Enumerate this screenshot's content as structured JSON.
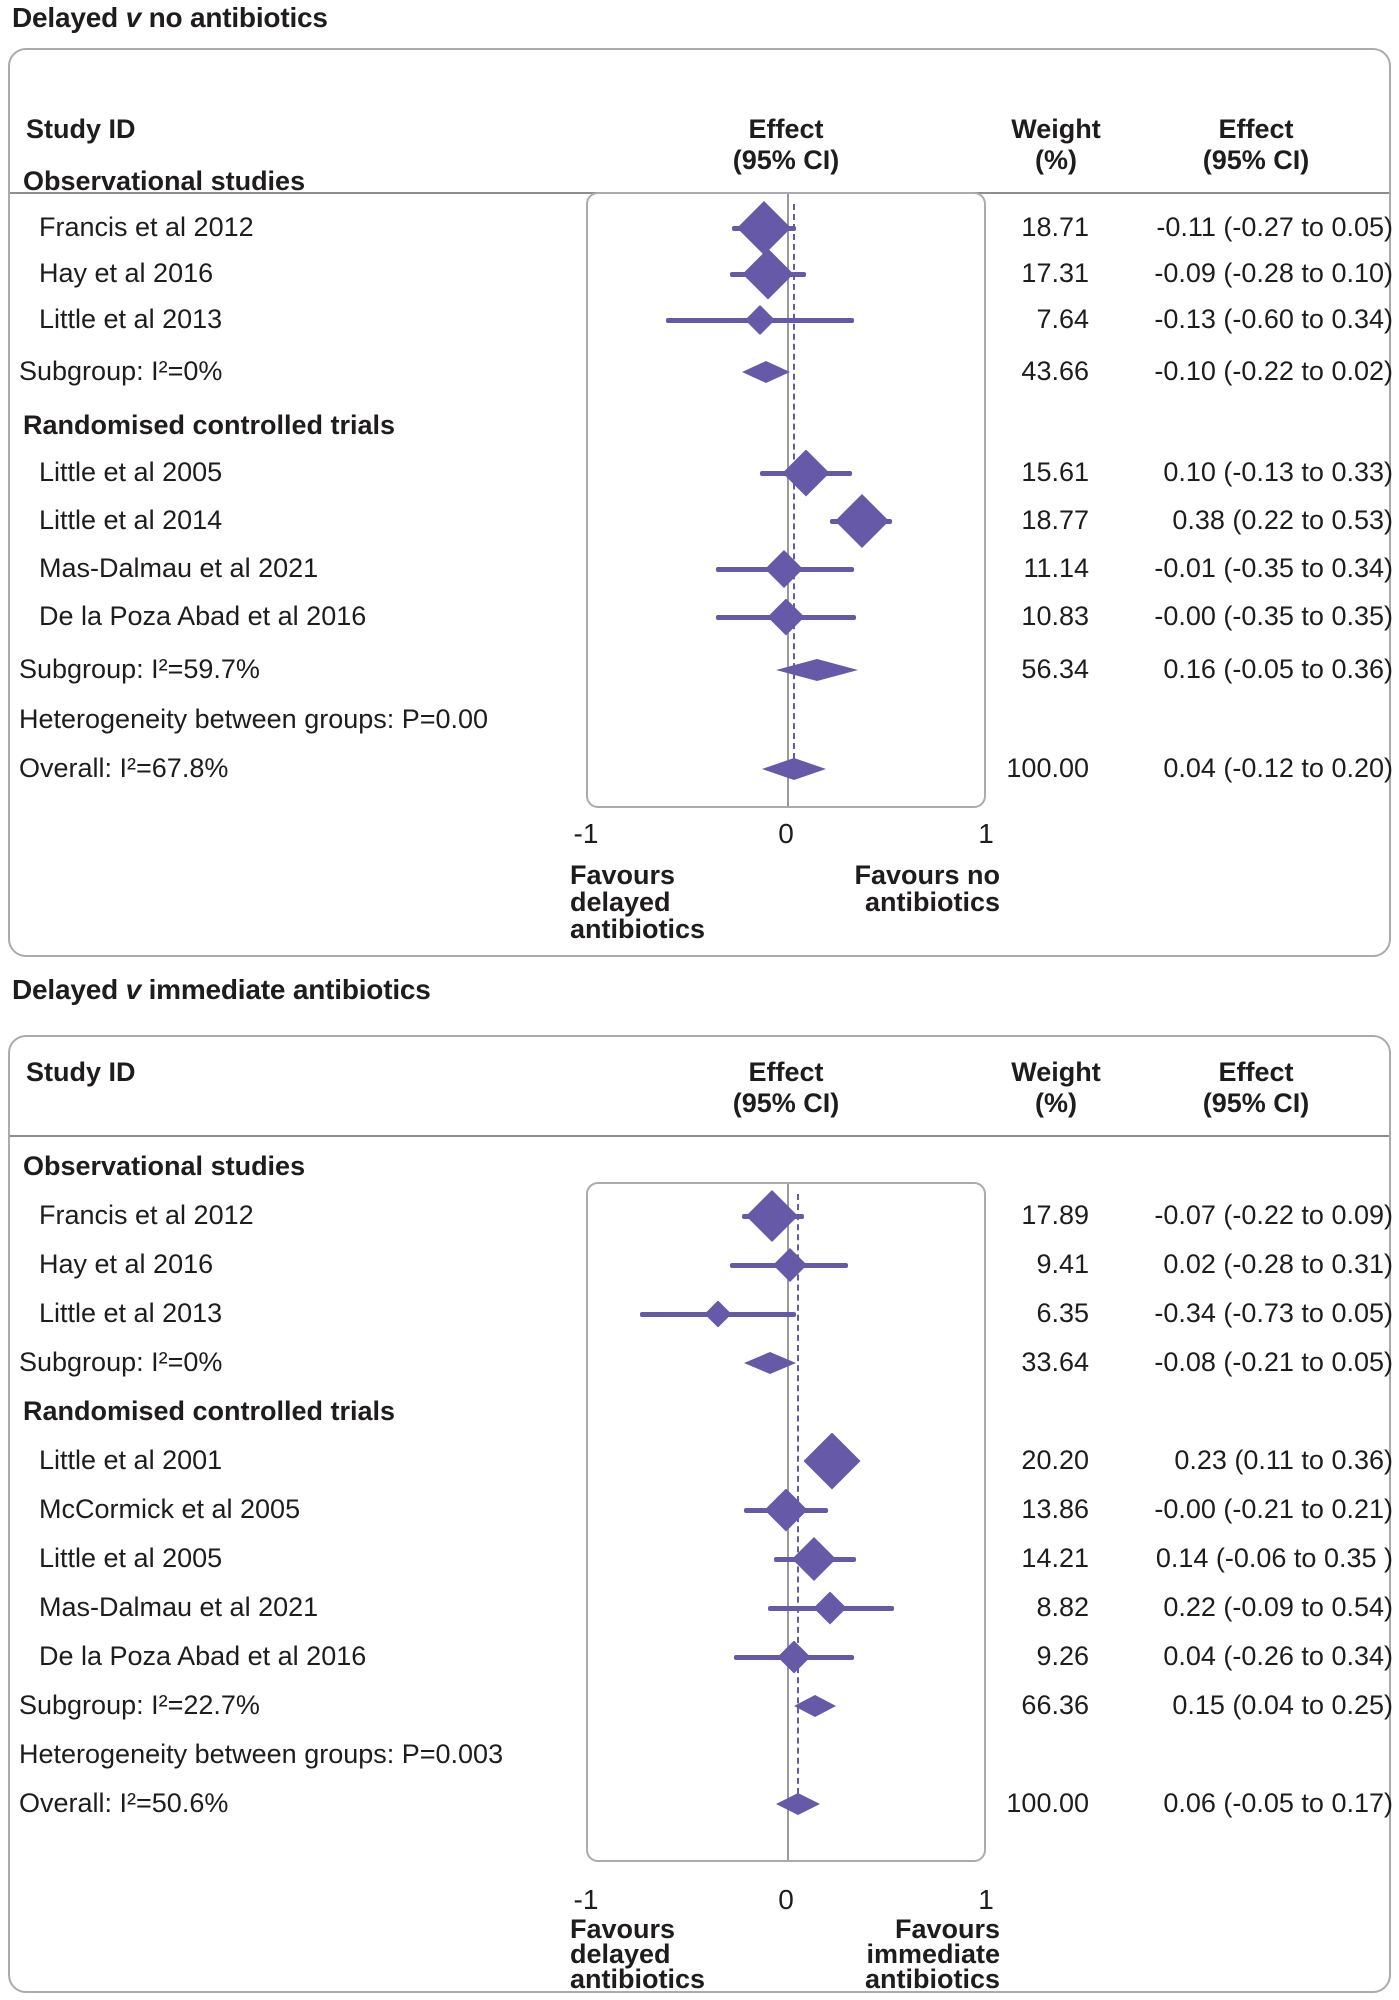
{
  "accent_color": "#6659a8",
  "line_gray": "#9a999d",
  "ui": {
    "panels": [
      {
        "title_pre": "Delayed",
        "title_v": "v",
        "title_post": "no antibiotics",
        "col_study": "Study ID",
        "col_effect_l1": "Effect",
        "col_effect_l2": "(95% CI)",
        "col_weight_l1": "Weight",
        "col_weight_l2": "(%)",
        "col_effect2_l1": "Effect",
        "col_effect2_l2": "(95% CI)",
        "tick_neg": "-1",
        "tick_zero": "0",
        "tick_pos": "1"
      },
      {
        "title_pre": "Delayed",
        "title_v": "v",
        "title_post": "immediate antibiotics",
        "col_study": "Study ID",
        "col_effect_l1": "Effect",
        "col_effect_l2": "(95% CI)",
        "col_weight_l1": "Weight",
        "col_weight_l2": "(%)",
        "col_effect2_l1": "Effect",
        "col_effect2_l2": "(95% CI)",
        "tick_neg": "-1",
        "tick_zero": "0",
        "tick_pos": "1"
      }
    ]
  },
  "chart_data": [
    {
      "type": "forest",
      "title": "Delayed v no antibiotics",
      "x_axis": {
        "range": [
          -1,
          1
        ],
        "ticks": [
          -1,
          0,
          1
        ]
      },
      "overall_effect": 0.04,
      "favours_left": [
        "Favours",
        "delayed",
        "antibiotics"
      ],
      "favours_right": [
        "Favours no",
        "antibiotics"
      ],
      "rows": [
        {
          "kind": "group",
          "label": "Observational studies"
        },
        {
          "kind": "study",
          "label": "Francis et al 2012",
          "weight": 18.71,
          "effect": -0.11,
          "lo": -0.27,
          "hi": 0.05,
          "weight_str": "18.71",
          "effect_str": "-0.11 (-0.27 to 0.05)"
        },
        {
          "kind": "study",
          "label": "Hay et al 2016",
          "weight": 17.31,
          "effect": -0.09,
          "lo": -0.28,
          "hi": 0.1,
          "weight_str": "17.31",
          "effect_str": "-0.09 (-0.28 to 0.10)"
        },
        {
          "kind": "study",
          "label": "Little et al 2013",
          "weight": 7.64,
          "effect": -0.13,
          "lo": -0.6,
          "hi": 0.34,
          "weight_str": "7.64",
          "effect_str": "-0.13 (-0.60 to 0.34)"
        },
        {
          "kind": "subgroup",
          "label": "Subgroup: I²=0%",
          "effect": -0.1,
          "lo": -0.22,
          "hi": 0.02,
          "weight_str": "43.66",
          "effect_str": "-0.10 (-0.22 to 0.02)"
        },
        {
          "kind": "group",
          "label": "Randomised controlled trials"
        },
        {
          "kind": "study",
          "label": "Little et al 2005",
          "weight": 15.61,
          "effect": 0.1,
          "lo": -0.13,
          "hi": 0.33,
          "weight_str": "15.61",
          "effect_str": "0.10 (-0.13 to 0.33)"
        },
        {
          "kind": "study",
          "label": "Little et al 2014",
          "weight": 18.77,
          "effect": 0.38,
          "lo": 0.22,
          "hi": 0.53,
          "weight_str": "18.77",
          "effect_str": "0.38 (0.22 to 0.53)"
        },
        {
          "kind": "study",
          "label": "Mas-Dalmau et al 2021",
          "weight": 11.14,
          "effect": -0.01,
          "lo": -0.35,
          "hi": 0.34,
          "weight_str": "11.14",
          "effect_str": "-0.01 (-0.35 to 0.34)"
        },
        {
          "kind": "study",
          "label": "De la Poza Abad et al 2016",
          "weight": 10.83,
          "effect": -0.0,
          "lo": -0.35,
          "hi": 0.35,
          "weight_str": "10.83",
          "effect_str": "-0.00 (-0.35 to 0.35)"
        },
        {
          "kind": "subgroup",
          "label": "Subgroup: I²=59.7%",
          "effect": 0.16,
          "lo": -0.05,
          "hi": 0.36,
          "weight_str": "56.34",
          "effect_str": "0.16 (-0.05 to 0.36)"
        },
        {
          "kind": "text",
          "label": "Heterogeneity between groups: P=0.00"
        },
        {
          "kind": "summary",
          "label": "Overall: I²=67.8%",
          "effect": 0.04,
          "lo": -0.12,
          "hi": 0.2,
          "weight_str": "100.00",
          "effect_str": "0.04 (-0.12 to 0.20)"
        }
      ]
    },
    {
      "type": "forest",
      "title": "Delayed v immediate antibiotics",
      "x_axis": {
        "range": [
          -1,
          1
        ],
        "ticks": [
          -1,
          0,
          1
        ]
      },
      "overall_effect": 0.06,
      "favours_left": [
        "Favours",
        "delayed",
        "antibiotics"
      ],
      "favours_right": [
        "Favours",
        "immediate",
        "antibiotics"
      ],
      "rows": [
        {
          "kind": "group",
          "label": "Observational studies"
        },
        {
          "kind": "study",
          "label": "Francis et al 2012",
          "weight": 17.89,
          "effect": -0.07,
          "lo": -0.22,
          "hi": 0.09,
          "weight_str": "17.89",
          "effect_str": "-0.07 (-0.22 to 0.09)"
        },
        {
          "kind": "study",
          "label": "Hay et al 2016",
          "weight": 9.41,
          "effect": 0.02,
          "lo": -0.28,
          "hi": 0.31,
          "weight_str": "9.41",
          "effect_str": "0.02 (-0.28 to 0.31)"
        },
        {
          "kind": "study",
          "label": "Little et al 2013",
          "weight": 6.35,
          "effect": -0.34,
          "lo": -0.73,
          "hi": 0.05,
          "weight_str": "6.35",
          "effect_str": "-0.34 (-0.73 to 0.05)"
        },
        {
          "kind": "subgroup",
          "label": "Subgroup: I²=0%",
          "effect": -0.08,
          "lo": -0.21,
          "hi": 0.05,
          "weight_str": "33.64",
          "effect_str": "-0.08 (-0.21 to 0.05)"
        },
        {
          "kind": "group",
          "label": "Randomised controlled trials"
        },
        {
          "kind": "study",
          "label": "Little et al 2001",
          "weight": 20.2,
          "effect": 0.23,
          "lo": 0.11,
          "hi": 0.36,
          "weight_str": "20.20",
          "effect_str": "0.23 (0.11 to 0.36)"
        },
        {
          "kind": "study",
          "label": "McCormick et al 2005",
          "weight": 13.86,
          "effect": -0.0,
          "lo": -0.21,
          "hi": 0.21,
          "weight_str": "13.86",
          "effect_str": "-0.00 (-0.21 to 0.21)"
        },
        {
          "kind": "study",
          "label": "Little et al 2005",
          "weight": 14.21,
          "effect": 0.14,
          "lo": -0.06,
          "hi": 0.35,
          "weight_str": "14.21",
          "effect_str": "0.14 (-0.06 to 0.35 )"
        },
        {
          "kind": "study",
          "label": "Mas-Dalmau et al 2021",
          "weight": 8.82,
          "effect": 0.22,
          "lo": -0.09,
          "hi": 0.54,
          "weight_str": "8.82",
          "effect_str": "0.22 (-0.09 to 0.54)"
        },
        {
          "kind": "study",
          "label": "De la Poza Abad et al 2016",
          "weight": 9.26,
          "effect": 0.04,
          "lo": -0.26,
          "hi": 0.34,
          "weight_str": "9.26",
          "effect_str": "0.04 (-0.26 to 0.34)"
        },
        {
          "kind": "subgroup",
          "label": "Subgroup: I²=22.7%",
          "effect": 0.15,
          "lo": 0.04,
          "hi": 0.25,
          "weight_str": "66.36",
          "effect_str": "0.15 (0.04 to 0.25)"
        },
        {
          "kind": "text",
          "label": "Heterogeneity between groups: P=0.003"
        },
        {
          "kind": "summary",
          "label": "Overall: I²=50.6%",
          "effect": 0.06,
          "lo": -0.05,
          "hi": 0.17,
          "weight_str": "100.00",
          "effect_str": "0.06 (-0.05 to 0.17)"
        }
      ]
    }
  ]
}
